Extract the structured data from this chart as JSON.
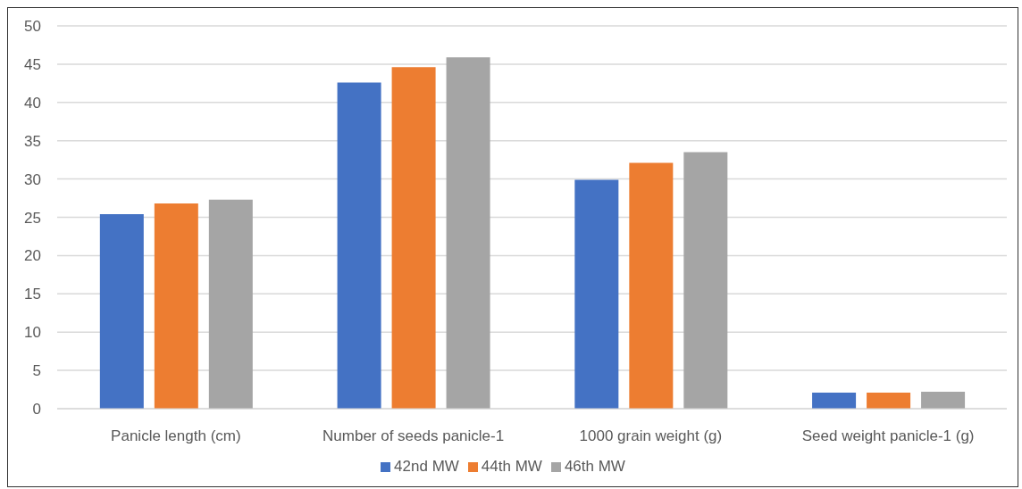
{
  "chart_data": {
    "type": "bar",
    "categories": [
      "Panicle length (cm)",
      "Number of seeds panicle-1",
      "1000 grain weight (g)",
      "Seed weight panicle-1 (g)"
    ],
    "series": [
      {
        "name": "42nd MW",
        "color": "#4472c4",
        "values": [
          25.4,
          42.6,
          29.9,
          2.1
        ]
      },
      {
        "name": "44th MW",
        "color": "#ed7d31",
        "values": [
          26.8,
          44.6,
          32.1,
          2.1
        ]
      },
      {
        "name": "46th MW",
        "color": "#a5a5a5",
        "values": [
          27.3,
          45.9,
          33.5,
          2.2
        ]
      }
    ],
    "ylim": [
      0,
      50
    ],
    "yticks": [
      0,
      5,
      10,
      15,
      20,
      25,
      30,
      35,
      40,
      45,
      50
    ],
    "grid": "y",
    "legend": "bottom"
  }
}
